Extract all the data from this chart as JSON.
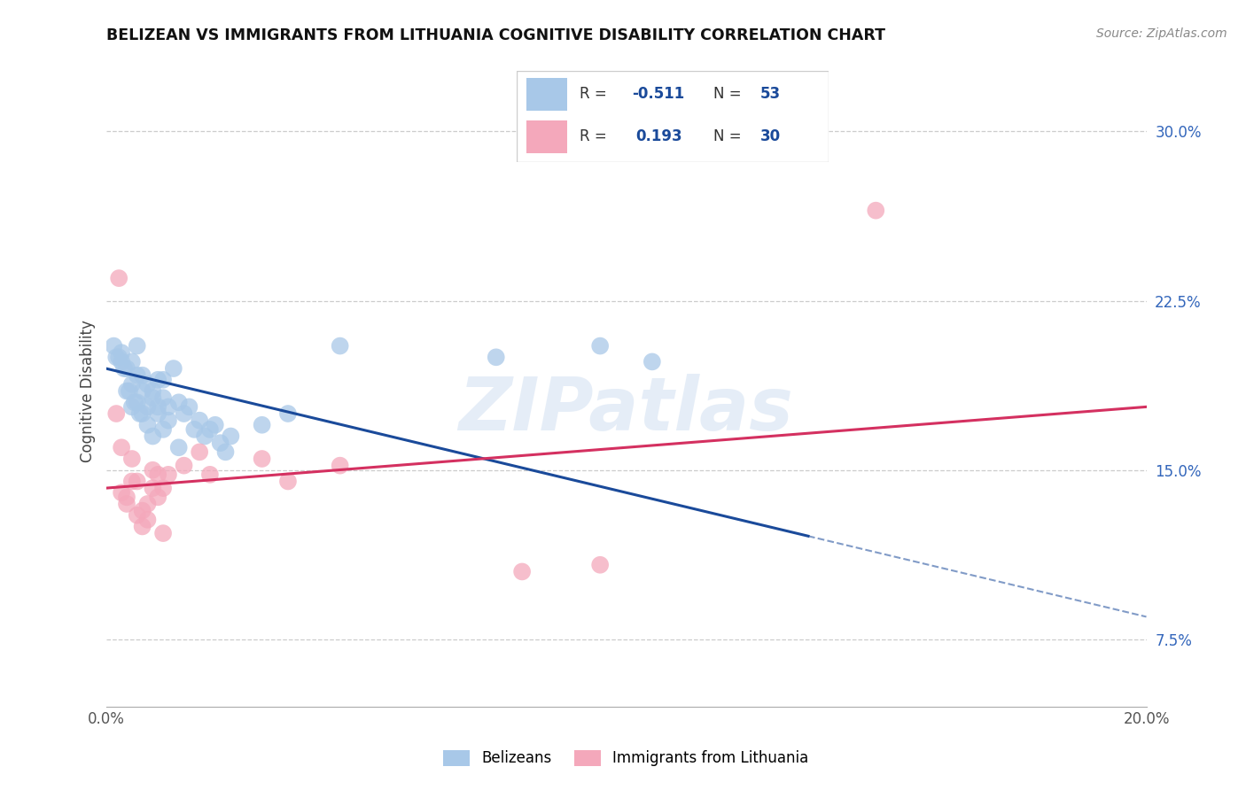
{
  "title": "BELIZEAN VS IMMIGRANTS FROM LITHUANIA COGNITIVE DISABILITY CORRELATION CHART",
  "source": "Source: ZipAtlas.com",
  "ylabel": "Cognitive Disability",
  "legend_label_blue": "Belizeans",
  "legend_label_pink": "Immigrants from Lithuania",
  "R_blue": -0.511,
  "N_blue": 53,
  "R_pink": 0.193,
  "N_pink": 30,
  "blue_color": "#a8c8e8",
  "pink_color": "#f4a8bb",
  "blue_line_color": "#1a4a9a",
  "pink_line_color": "#d43060",
  "watermark": "ZIPatlas",
  "blue_x": [
    0.5,
    0.6,
    0.7,
    0.8,
    0.9,
    1.0,
    1.1,
    1.2,
    1.3,
    1.4,
    0.3,
    0.4,
    0.5,
    0.6,
    0.7,
    0.8,
    0.9,
    1.0,
    1.1,
    1.2,
    0.2,
    0.3,
    0.4,
    0.5,
    0.6,
    0.7,
    0.8,
    0.9,
    1.0,
    1.1,
    1.5,
    1.6,
    1.7,
    1.8,
    1.9,
    2.0,
    2.1,
    2.2,
    2.3,
    2.4,
    3.0,
    3.5,
    0.15,
    0.25,
    0.35,
    0.45,
    0.55,
    0.65,
    7.5,
    9.5,
    1.4,
    4.5,
    10.5
  ],
  "blue_y": [
    19.8,
    20.5,
    19.2,
    18.8,
    18.5,
    19.0,
    18.2,
    17.8,
    19.5,
    18.0,
    20.2,
    19.5,
    18.8,
    19.2,
    18.5,
    17.8,
    18.2,
    17.5,
    19.0,
    17.2,
    20.0,
    19.8,
    18.5,
    17.8,
    18.0,
    17.5,
    17.0,
    16.5,
    17.8,
    16.8,
    17.5,
    17.8,
    16.8,
    17.2,
    16.5,
    16.8,
    17.0,
    16.2,
    15.8,
    16.5,
    17.0,
    17.5,
    20.5,
    20.0,
    19.5,
    18.5,
    18.0,
    17.5,
    20.0,
    20.5,
    16.0,
    20.5,
    19.8
  ],
  "pink_x": [
    0.2,
    0.3,
    0.4,
    0.5,
    0.6,
    0.7,
    0.8,
    0.9,
    1.0,
    1.1,
    0.3,
    0.4,
    0.5,
    0.6,
    0.7,
    0.8,
    0.9,
    1.0,
    1.1,
    1.2,
    1.5,
    2.0,
    3.0,
    3.5,
    4.5,
    8.0,
    9.5,
    14.8,
    0.25,
    1.8
  ],
  "pink_y": [
    17.5,
    14.0,
    13.5,
    15.5,
    14.5,
    13.2,
    12.8,
    15.0,
    14.8,
    14.2,
    16.0,
    13.8,
    14.5,
    13.0,
    12.5,
    13.5,
    14.2,
    13.8,
    12.2,
    14.8,
    15.2,
    14.8,
    15.5,
    14.5,
    15.2,
    10.5,
    10.8,
    26.5,
    23.5,
    15.8
  ],
  "xmin": 0.0,
  "xmax": 20.0,
  "ymin": 4.5,
  "ymax": 32.5,
  "right_yticks": [
    7.5,
    15.0,
    22.5,
    30.0
  ],
  "right_yticklabels": [
    "7.5%",
    "15.0%",
    "22.5%",
    "30.0%"
  ],
  "blue_line_x0": 0.0,
  "blue_line_x1": 20.0,
  "blue_line_y0": 19.5,
  "blue_line_y1": 8.5,
  "pink_line_x0": 0.0,
  "pink_line_x1": 20.0,
  "pink_line_y0": 14.2,
  "pink_line_y1": 17.8,
  "blue_solid_end": 13.5
}
